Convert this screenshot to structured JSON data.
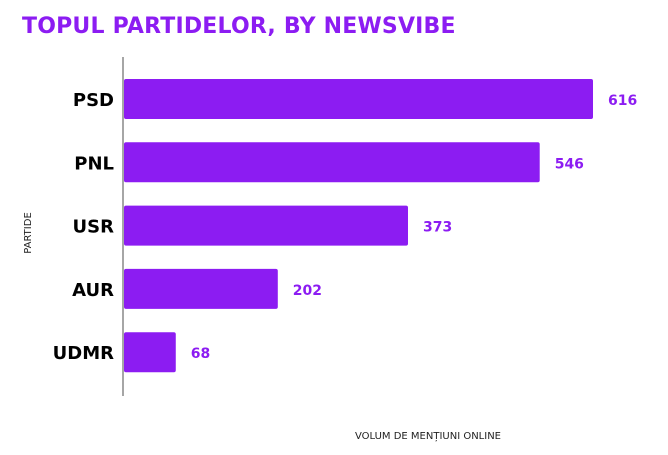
{
  "chart_data": {
    "type": "bar",
    "orientation": "horizontal",
    "title": "TOPUL PARTIDELOR, BY NEWSVIBE",
    "xlabel": "VOLUM DE MENȚIUNI ONLINE",
    "ylabel": "PARTIDE",
    "categories": [
      "PSD",
      "PNL",
      "USR",
      "AUR",
      "UDMR"
    ],
    "values": [
      616,
      546,
      373,
      202,
      68
    ],
    "xlim": [
      0,
      616
    ],
    "grid": false,
    "legend": "none",
    "data_labels": true
  },
  "colors": {
    "bar": "#8c1cf2",
    "value_label": "#8c1cf2",
    "title": "#8c1cf2",
    "axis": "#888888"
  }
}
